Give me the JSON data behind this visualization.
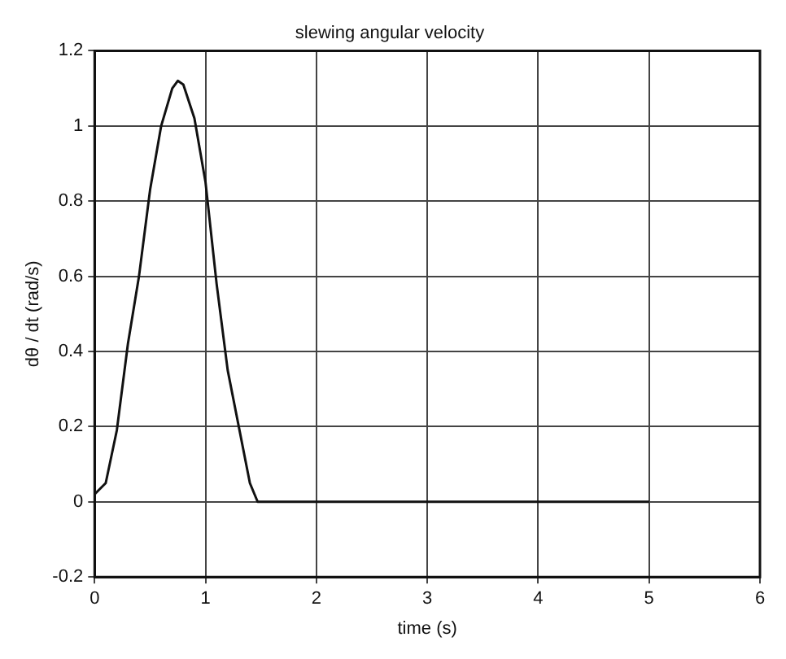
{
  "chart_data": {
    "type": "line",
    "title": "slewing angular velocity",
    "xlabel": "time (s)",
    "ylabel": "dθ / dt (rad/s)",
    "series": [
      {
        "color": "#111111",
        "x": [
          0,
          0.1,
          0.2,
          0.3,
          0.4,
          0.5,
          0.6,
          0.7,
          0.75,
          0.8,
          0.9,
          1.0,
          1.1,
          1.2,
          1.3,
          1.4,
          1.47,
          2,
          3,
          4,
          5
        ],
        "values": [
          0.02,
          0.05,
          0.19,
          0.42,
          0.6,
          0.83,
          1.0,
          1.1,
          1.12,
          1.11,
          1.02,
          0.85,
          0.58,
          0.35,
          0.2,
          0.05,
          0,
          0,
          0,
          0,
          0
        ]
      }
    ],
    "xlim": [
      0,
      6
    ],
    "xticks": [
      0,
      1,
      2,
      3,
      4,
      5,
      6
    ],
    "ylim": [
      -0.2,
      1.2
    ],
    "yticks": [
      -0.2,
      0,
      0.2,
      0.4,
      0.6,
      0.8,
      1,
      1.2
    ],
    "grid": true,
    "legend": false,
    "marker": "none",
    "line_style": "solid"
  }
}
